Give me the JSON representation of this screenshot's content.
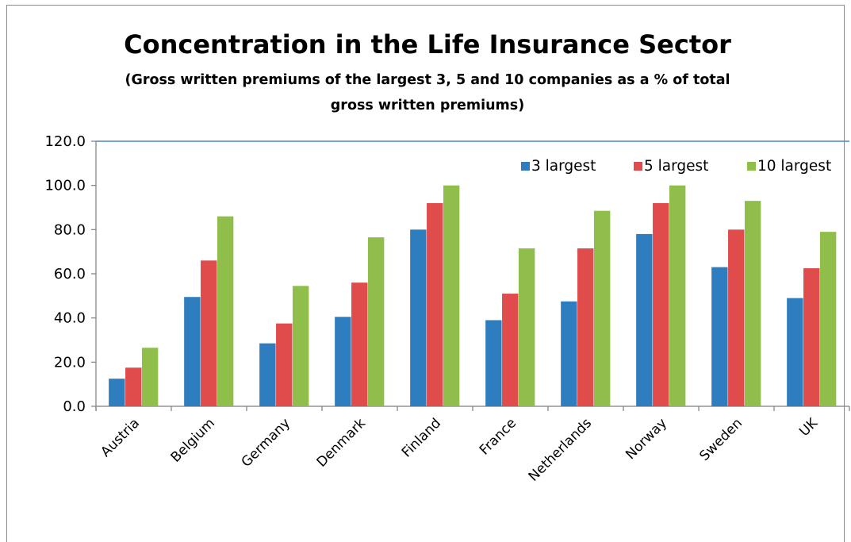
{
  "chart_data": {
    "type": "bar",
    "title": "Concentration in the Life Insurance Sector",
    "subtitle_lines": [
      "(Gross written premiums of the largest 3, 5 and 10 companies as a % of total",
      "gross written premiums)"
    ],
    "categories": [
      "Austria",
      "Belgium",
      "Germany",
      "Denmark",
      "Finland",
      "France",
      "Netherlands",
      "Norway",
      "Sweden",
      "UK"
    ],
    "series": [
      {
        "name": "3 largest",
        "color": "#2e7ebf",
        "values": [
          12.5,
          49.5,
          28.5,
          40.5,
          80.0,
          39.0,
          47.5,
          78.0,
          63.0,
          49.0
        ]
      },
      {
        "name": "5 largest",
        "color": "#e04b4b",
        "values": [
          17.5,
          66.0,
          37.5,
          56.0,
          92.0,
          51.0,
          71.5,
          92.0,
          80.0,
          62.5
        ]
      },
      {
        "name": "10 largest",
        "color": "#8fbf4a",
        "values": [
          26.5,
          86.0,
          54.5,
          76.5,
          100.0,
          71.5,
          88.5,
          100.0,
          93.0,
          79.0
        ]
      }
    ],
    "ylim": [
      0,
      120
    ],
    "yticks": [
      "0.0",
      "20.0",
      "40.0",
      "60.0",
      "80.0",
      "100.0",
      "120.0"
    ],
    "ytick_values": [
      0,
      20,
      40,
      60,
      80,
      100,
      120
    ],
    "xlabel": "",
    "ylabel": "",
    "grid": false,
    "legend_position": "top-right"
  }
}
